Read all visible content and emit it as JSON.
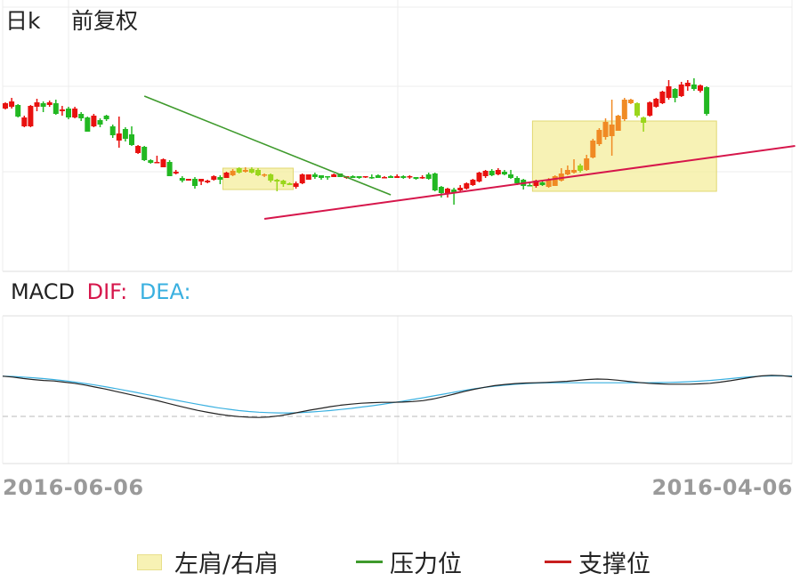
{
  "header": {
    "period": "日k",
    "adjust": "前复权"
  },
  "macd_header": {
    "name": "MACD",
    "dif_label": "DIF:",
    "dea_label": "DEA:"
  },
  "x_axis": {
    "left_date": "2016-06-06",
    "right_date": "2016-04-06"
  },
  "legend": {
    "shoulder": "左肩/右肩",
    "resistance": "压力位",
    "support": "支撑位"
  },
  "colors": {
    "up": "#e8110f",
    "down": "#22b822",
    "dif": "#222222",
    "dea": "#3ab0e0",
    "resistance": "#3e9a2c",
    "support": "#d6164b",
    "shoulder_fill": "#f4ee9c",
    "highlight_up": "#f08a24",
    "highlight_down": "#9ad61c"
  },
  "chart_data": {
    "type": "candlestick",
    "candles": [
      {
        "o": 78.0,
        "c": 84.0,
        "h": 85.0,
        "l": 77.0
      },
      {
        "o": 80.0,
        "c": 86.0,
        "h": 90.0,
        "l": 78.0
      },
      {
        "o": 82.0,
        "c": 69.0,
        "h": 83.0,
        "l": 68.0
      },
      {
        "o": 58.0,
        "c": 68.0,
        "h": 70.0,
        "l": 57.0
      },
      {
        "o": 58.0,
        "c": 81.0,
        "h": 82.0,
        "l": 57.0
      },
      {
        "o": 80.0,
        "c": 85.0,
        "h": 89.0,
        "l": 75.0
      },
      {
        "o": 84.0,
        "c": 80.0,
        "h": 86.0,
        "l": 74.0
      },
      {
        "o": 82.0,
        "c": 85.0,
        "h": 87.0,
        "l": 80.0
      },
      {
        "o": 84.0,
        "c": 72.0,
        "h": 88.0,
        "l": 71.0
      },
      {
        "o": 75.0,
        "c": 77.0,
        "h": 81.0,
        "l": 70.0
      },
      {
        "o": 78.0,
        "c": 68.0,
        "h": 80.0,
        "l": 66.0
      },
      {
        "o": 68.0,
        "c": 78.0,
        "h": 80.0,
        "l": 67.0
      },
      {
        "o": 72.0,
        "c": 67.0,
        "h": 74.0,
        "l": 64.0
      },
      {
        "o": 68.0,
        "c": 52.0,
        "h": 69.0,
        "l": 52.0
      },
      {
        "o": 58.0,
        "c": 70.0,
        "h": 72.0,
        "l": 57.0
      },
      {
        "o": 65.0,
        "c": 60.0,
        "h": 67.0,
        "l": 57.0
      },
      {
        "o": 70.0,
        "c": 66.0,
        "h": 71.0,
        "l": 64.0
      },
      {
        "o": 58.0,
        "c": 48.0,
        "h": 60.0,
        "l": 45.0
      },
      {
        "o": 42.0,
        "c": 50.0,
        "h": 69.0,
        "l": 34.0
      },
      {
        "o": 55.0,
        "c": 44.0,
        "h": 57.0,
        "l": 41.0
      },
      {
        "o": 49.0,
        "c": 37.0,
        "h": 58.0,
        "l": 36.0
      },
      {
        "o": 28.0,
        "c": 36.0,
        "h": 37.0,
        "l": 27.0
      },
      {
        "o": 35.0,
        "c": 20.0,
        "h": 36.0,
        "l": 19.0
      },
      {
        "o": 20.0,
        "c": 17.0,
        "h": 21.0,
        "l": 16.0
      },
      {
        "o": 17.0,
        "c": 18.0,
        "h": 25.0,
        "l": 17.0
      },
      {
        "o": 12.0,
        "c": 21.0,
        "h": 22.0,
        "l": 12.0
      },
      {
        "o": 18.0,
        "c": 2.0,
        "h": 20.0,
        "l": 2.0
      },
      {
        "o": 5.0,
        "c": 7.0,
        "h": 9.0,
        "l": 4.0
      },
      {
        "o": 0.0,
        "c": -3.0,
        "h": 2.0,
        "l": -5.0
      },
      {
        "o": -3.0,
        "c": -1.0,
        "h": -1.0,
        "l": -3.0
      },
      {
        "o": -1.0,
        "c": -9.0,
        "h": 1.0,
        "l": -12.0
      },
      {
        "o": -4.0,
        "c": -1.0,
        "h": -1.0,
        "l": -8.0
      },
      {
        "o": -5.0,
        "c": -3.0,
        "h": -2.0,
        "l": -6.0
      },
      {
        "o": -2.0,
        "c": 2.0,
        "h": 3.0,
        "l": -3.0
      },
      {
        "o": 1.0,
        "c": -2.0,
        "h": 3.0,
        "l": -7.0
      },
      {
        "o": 0.0,
        "c": 6.0,
        "h": 7.0,
        "l": 0.0
      },
      {
        "o": 3.0,
        "c": 8.0,
        "h": 10.0,
        "l": 2.0
      },
      {
        "o": 11.0,
        "c": 6.0,
        "h": 12.0,
        "l": 5.0
      },
      {
        "o": 7.0,
        "c": 9.0,
        "h": 12.0,
        "l": 6.0
      },
      {
        "o": 10.0,
        "c": 6.0,
        "h": 12.0,
        "l": 5.0
      },
      {
        "o": 9.0,
        "c": 3.0,
        "h": 11.0,
        "l": 2.0
      },
      {
        "o": 3.0,
        "c": 4.0,
        "h": 5.0,
        "l": 1.0
      },
      {
        "o": 4.0,
        "c": -3.0,
        "h": 5.0,
        "l": -5.0
      },
      {
        "o": -2.0,
        "c": -4.0,
        "h": -1.0,
        "l": -15.0
      },
      {
        "o": -3.0,
        "c": -7.0,
        "h": -2.0,
        "l": -10.0
      },
      {
        "o": -6.0,
        "c": -8.0,
        "h": -5.0,
        "l": -8.0
      },
      {
        "o": -10.0,
        "c": -6.0,
        "h": -4.0,
        "l": -12.0
      },
      {
        "o": -6.0,
        "c": 4.0,
        "h": 5.0,
        "l": -7.0
      },
      {
        "o": -2.0,
        "c": 4.0,
        "h": 4.0,
        "l": -2.0
      },
      {
        "o": 4.0,
        "c": 1.0,
        "h": 6.0,
        "l": -1.0
      },
      {
        "o": 3.0,
        "c": 0.0,
        "h": 3.0,
        "l": -2.0
      },
      {
        "o": 2.0,
        "c": 1.0,
        "h": 2.0,
        "l": -2.0
      },
      {
        "o": 1.0,
        "c": 4.0,
        "h": 5.0,
        "l": 1.0
      },
      {
        "o": 5.0,
        "c": 1.0,
        "h": 5.0,
        "l": 1.0
      },
      {
        "o": 0.0,
        "c": 2.0,
        "h": 2.0,
        "l": -1.0
      },
      {
        "o": 2.0,
        "c": 0.0,
        "h": 3.0,
        "l": 0.0
      },
      {
        "o": 2.0,
        "c": 0.0,
        "h": 2.0,
        "l": -1.0
      },
      {
        "o": 1.0,
        "c": 2.0,
        "h": 2.0,
        "l": 0.0
      },
      {
        "o": 1.0,
        "c": 0.0,
        "h": 4.0,
        "l": -1.0
      },
      {
        "o": 3.0,
        "c": 0.0,
        "h": 4.0,
        "l": 0.0
      },
      {
        "o": 1.0,
        "c": 1.0,
        "h": 2.0,
        "l": 0.0
      },
      {
        "o": 2.0,
        "c": 0.0,
        "h": 3.0,
        "l": 0.0
      },
      {
        "o": 0.0,
        "c": 2.0,
        "h": 4.0,
        "l": 0.0
      },
      {
        "o": 2.0,
        "c": 0.0,
        "h": 3.0,
        "l": -1.0
      },
      {
        "o": 1.0,
        "c": 2.0,
        "h": 3.0,
        "l": -1.0
      },
      {
        "o": 1.0,
        "c": -1.0,
        "h": 1.0,
        "l": -2.0
      },
      {
        "o": 0.0,
        "c": 1.0,
        "h": 3.0,
        "l": -1.0
      },
      {
        "o": 4.0,
        "c": -1.0,
        "h": 6.0,
        "l": -2.0
      },
      {
        "o": 5.0,
        "c": -14.0,
        "h": 6.0,
        "l": -15.0
      },
      {
        "o": -10.0,
        "c": -17.0,
        "h": -9.0,
        "l": -22.0
      },
      {
        "o": -18.0,
        "c": -12.0,
        "h": -11.0,
        "l": -22.0
      },
      {
        "o": -13.0,
        "c": -17.0,
        "h": -11.0,
        "l": -30.0
      },
      {
        "o": -14.0,
        "c": -11.0,
        "h": -8.0,
        "l": -16.0
      },
      {
        "o": -12.0,
        "c": -6.0,
        "h": -5.0,
        "l": -13.0
      },
      {
        "o": -8.0,
        "c": -2.0,
        "h": -1.0,
        "l": -9.0
      },
      {
        "o": -4.0,
        "c": 6.0,
        "h": 7.0,
        "l": -5.0
      },
      {
        "o": 2.0,
        "c": 8.0,
        "h": 9.0,
        "l": 0.0
      },
      {
        "o": 8.0,
        "c": 3.0,
        "h": 10.0,
        "l": 2.0
      },
      {
        "o": 4.0,
        "c": 9.0,
        "h": 11.0,
        "l": 3.0
      },
      {
        "o": 7.0,
        "c": 4.0,
        "h": 9.0,
        "l": 3.0
      },
      {
        "o": 4.0,
        "c": 0.0,
        "h": 9.0,
        "l": -1.0
      },
      {
        "o": 0.0,
        "c": -6.0,
        "h": 2.0,
        "l": -8.0
      },
      {
        "o": -2.0,
        "c": -9.0,
        "h": -1.0,
        "l": -13.0
      },
      {
        "o": -8.0,
        "c": -9.0,
        "h": -6.0,
        "l": -9.0
      },
      {
        "o": -9.0,
        "c": -3.0,
        "h": -2.0,
        "l": -11.0
      },
      {
        "o": -5.0,
        "c": -8.0,
        "h": -4.0,
        "l": -9.0
      },
      {
        "o": -10.0,
        "c": -2.0,
        "h": 0.0,
        "l": -11.0
      },
      {
        "o": -9.0,
        "c": 2.0,
        "h": 3.0,
        "l": -9.0
      },
      {
        "o": -3.0,
        "c": 5.0,
        "h": 11.0,
        "l": -4.0
      },
      {
        "o": 4.0,
        "c": 9.0,
        "h": 14.0,
        "l": 3.0
      },
      {
        "o": 6.0,
        "c": 9.0,
        "h": 21.0,
        "l": 5.0
      },
      {
        "o": 14.0,
        "c": 8.0,
        "h": 16.0,
        "l": 6.0
      },
      {
        "o": 9.0,
        "c": 22.0,
        "h": 26.0,
        "l": 8.0
      },
      {
        "o": 23.0,
        "c": 42.0,
        "h": 44.0,
        "l": 22.0
      },
      {
        "o": 38.0,
        "c": 54.0,
        "h": 56.0,
        "l": 36.0
      },
      {
        "o": 46.0,
        "c": 63.0,
        "h": 67.0,
        "l": 43.0
      },
      {
        "o": 47.0,
        "c": 60.0,
        "h": 88.0,
        "l": 25.0
      },
      {
        "o": 53.0,
        "c": 70.0,
        "h": 71.0,
        "l": 53.0
      },
      {
        "o": 66.0,
        "c": 88.0,
        "h": 90.0,
        "l": 64.0
      },
      {
        "o": 84.0,
        "c": 88.0,
        "h": 89.0,
        "l": 83.0
      },
      {
        "o": 84.0,
        "c": 70.0,
        "h": 85.0,
        "l": 68.0
      },
      {
        "o": 68.0,
        "c": 62.0,
        "h": 69.0,
        "l": 52.0
      },
      {
        "o": 70.0,
        "c": 85.0,
        "h": 86.0,
        "l": 69.0
      },
      {
        "o": 80.0,
        "c": 89.0,
        "h": 90.0,
        "l": 79.0
      },
      {
        "o": 84.0,
        "c": 97.0,
        "h": 98.0,
        "l": 83.0
      },
      {
        "o": 90.0,
        "c": 103.0,
        "h": 110.0,
        "l": 88.0
      },
      {
        "o": 100.0,
        "c": 90.0,
        "h": 101.0,
        "l": 85.0
      },
      {
        "o": 92.0,
        "c": 105.0,
        "h": 108.0,
        "l": 91.0
      },
      {
        "o": 103.0,
        "c": 107.0,
        "h": 110.0,
        "l": 98.0
      },
      {
        "o": 105.0,
        "c": 100.0,
        "h": 112.0,
        "l": 98.0
      },
      {
        "o": 98.0,
        "c": 104.0,
        "h": 105.0,
        "l": 96.0
      },
      {
        "o": 102.0,
        "c": 72.0,
        "h": 103.0,
        "l": 70.0
      }
    ],
    "highlight_candle_ranges": [
      [
        36,
        45
      ],
      [
        86,
        101
      ]
    ],
    "shoulder_boxes": [
      {
        "label": "左肩",
        "from_index": 35,
        "to_index": 45,
        "price_top": 11,
        "price_bottom": -13
      },
      {
        "label": "右肩",
        "from_index": 84,
        "to_index": 112,
        "price_top": 64,
        "price_bottom": -15
      }
    ],
    "resistance_line": {
      "from_index": 22,
      "from_price": 92,
      "to_index": 61,
      "to_price": -19
    },
    "support_line": {
      "from_index": 41,
      "from_price": -46,
      "to_index": 125,
      "to_price": 36
    },
    "macd": {
      "dif": [
        -3.0,
        -3.6,
        -4.6,
        -5.4,
        -6.0,
        -6.4,
        -7.2,
        -8.0,
        -9.2,
        -10.6,
        -12.0,
        -13.6,
        -15.2,
        -16.8,
        -18.4,
        -20.0,
        -21.8,
        -23.6,
        -25.4,
        -27.0,
        -28.4,
        -29.6,
        -30.6,
        -31.4,
        -31.8,
        -32.0,
        -31.6,
        -30.8,
        -29.6,
        -28.2,
        -26.8,
        -25.6,
        -24.4,
        -23.4,
        -22.6,
        -22.0,
        -21.6,
        -21.4,
        -21.4,
        -21.2,
        -20.8,
        -20.2,
        -19.0,
        -17.4,
        -15.6,
        -13.8,
        -12.2,
        -10.8,
        -9.6,
        -8.8,
        -8.2,
        -7.8,
        -7.6,
        -7.4,
        -7.0,
        -6.6,
        -6.0,
        -5.4,
        -5.0,
        -5.2,
        -5.8,
        -6.6,
        -7.4,
        -8.0,
        -8.4,
        -8.6,
        -8.6,
        -8.6,
        -8.4,
        -8.0,
        -7.2,
        -6.2,
        -5.0,
        -3.8,
        -2.8,
        -2.4,
        -2.6,
        -3.4
      ],
      "dea": [
        -3.0,
        -3.2,
        -3.6,
        -4.1,
        -4.7,
        -5.4,
        -6.2,
        -7.1,
        -8.1,
        -9.2,
        -10.4,
        -11.7,
        -13.0,
        -14.4,
        -15.8,
        -17.2,
        -18.6,
        -20.0,
        -21.4,
        -22.7,
        -24.0,
        -25.2,
        -26.2,
        -27.1,
        -27.8,
        -28.3,
        -28.6,
        -28.8,
        -28.8,
        -28.6,
        -28.2,
        -27.7,
        -27.1,
        -26.4,
        -25.6,
        -24.7,
        -23.8,
        -22.8,
        -21.7,
        -20.6,
        -19.4,
        -18.2,
        -16.9,
        -15.6,
        -14.3,
        -13.0,
        -11.9,
        -10.9,
        -10.0,
        -9.3,
        -8.7,
        -8.2,
        -7.9,
        -7.7,
        -7.6,
        -7.6,
        -7.6,
        -7.6,
        -7.6,
        -7.6,
        -7.6,
        -7.6,
        -7.6,
        -7.6,
        -7.5,
        -7.4,
        -7.2,
        -6.9,
        -6.5,
        -6.0,
        -5.4,
        -4.7,
        -4.0,
        -3.4,
        -3.0,
        -2.8,
        -2.8,
        -2.8
      ]
    },
    "macd_zero_line": true
  }
}
